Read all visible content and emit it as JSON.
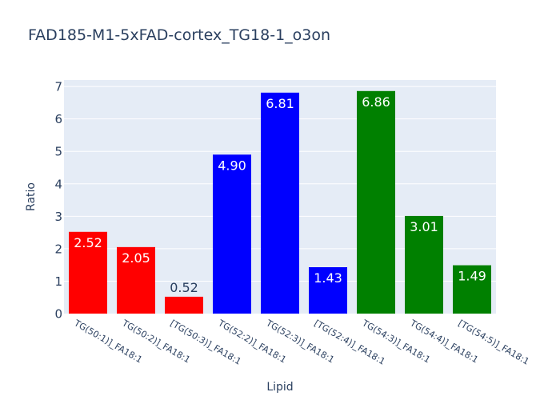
{
  "chart_data": {
    "type": "bar",
    "title": "FAD185-M1-5xFAD-cortex_TG18-1_o3on",
    "xlabel": "Lipid",
    "ylabel": "Ratio",
    "ylim": [
      0,
      7.2
    ],
    "yticks": [
      0,
      1,
      2,
      3,
      4,
      5,
      6,
      7
    ],
    "grid": true,
    "categories": [
      "TG(50:1)]_FA18:1",
      "TG(50:2)]_FA18:1",
      "[TG(50:3)]_FA18:1",
      "TG(52:2)]_FA18:1",
      "TG(52:3)]_FA18:1",
      "[TG(52:4)]_FA18:1",
      "TG(54:3)]_FA18:1",
      "TG(54:4)]_FA18:1",
      "[TG(54:5)]_FA18:1"
    ],
    "values": [
      2.52,
      2.05,
      0.52,
      4.9,
      6.81,
      1.43,
      6.86,
      3.01,
      1.49
    ],
    "data_labels": [
      "2.52",
      "2.05",
      "0.52",
      "4.90",
      "6.81",
      "1.43",
      "6.86",
      "3.01",
      "1.49"
    ],
    "bar_colors": [
      "#ff0000",
      "#ff0000",
      "#ff0000",
      "#0000ff",
      "#0000ff",
      "#0000ff",
      "#008000",
      "#008000",
      "#008000"
    ]
  },
  "colors": {
    "plot_background": "#e5ecf6",
    "gridline": "#ffffff",
    "text": "#2a3f5f"
  }
}
